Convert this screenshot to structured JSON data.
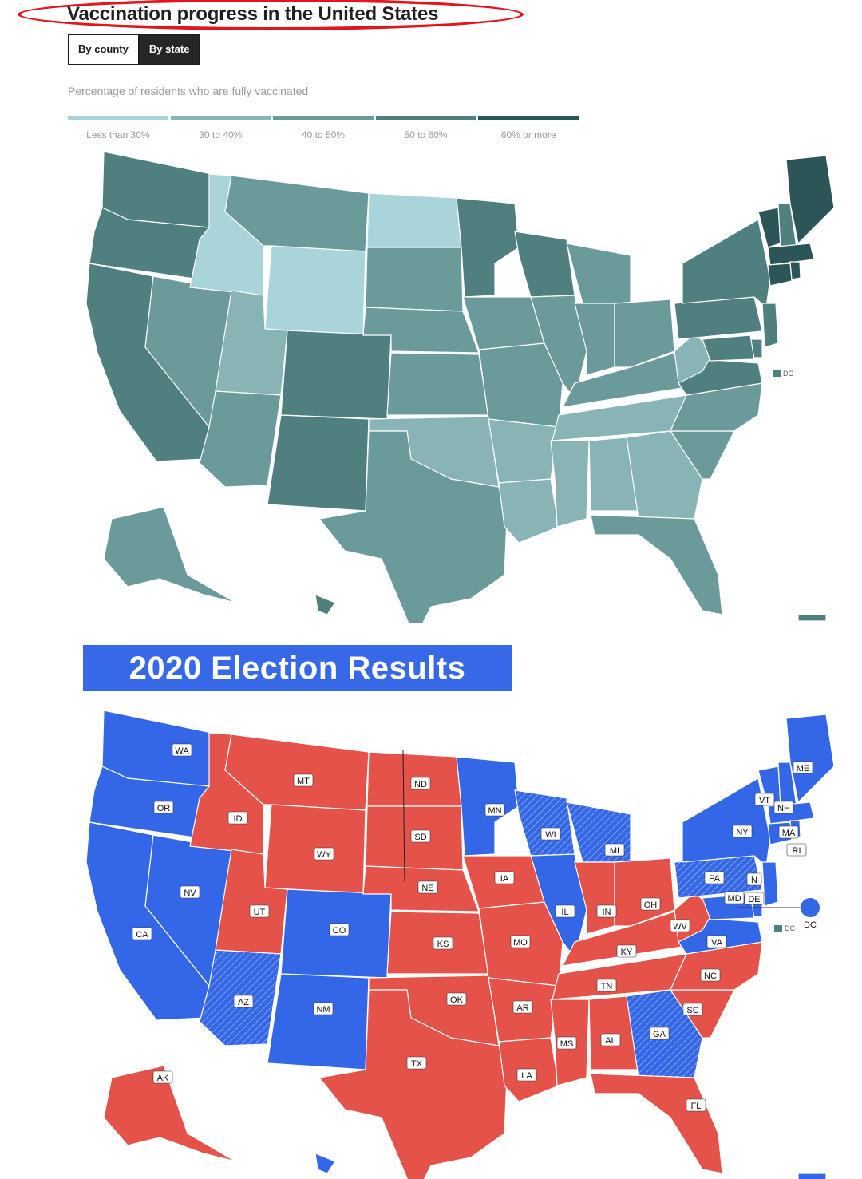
{
  "vaccination": {
    "title": "Vaccination progress in the United States",
    "toggle": {
      "county_label": "By county",
      "state_label": "By state",
      "selected": "By state"
    },
    "subtitle": "Percentage of residents who are fully vaccinated",
    "legend": [
      {
        "label": "Less than 30%",
        "color": "#a9d5da"
      },
      {
        "label": "30 to 40%",
        "color": "#88b4b6"
      },
      {
        "label": "40 to 50%",
        "color": "#6b9a9b"
      },
      {
        "label": "50 to 60%",
        "color": "#4f7f7f"
      },
      {
        "label": "60% or more",
        "color": "#2b5556"
      }
    ],
    "dc_label": "DC",
    "states": {
      "WA": 3,
      "OR": 3,
      "CA": 3,
      "ID": 0,
      "NV": 2,
      "UT": 1,
      "AZ": 2,
      "MT": 2,
      "WY": 0,
      "CO": 3,
      "NM": 3,
      "ND": 0,
      "SD": 2,
      "NE": 2,
      "KS": 2,
      "OK": 1,
      "TX": 2,
      "MN": 3,
      "IA": 2,
      "MO": 2,
      "AR": 1,
      "LA": 1,
      "WI": 3,
      "IL": 2,
      "MI": 2,
      "IN": 2,
      "OH": 2,
      "KY": 2,
      "TN": 1,
      "MS": 1,
      "AL": 1,
      "GA": 1,
      "FL": 2,
      "SC": 2,
      "NC": 2,
      "VA": 3,
      "WV": 1,
      "PA": 3,
      "NY": 3,
      "ME": 4,
      "VT": 4,
      "NH": 3,
      "MA": 4,
      "CT": 4,
      "RI": 4,
      "NJ": 3,
      "DE": 3,
      "MD": 3,
      "AK": 2,
      "HI": 3,
      "PR": 3,
      "DC": 3
    }
  },
  "election": {
    "title": "2020 Election Results",
    "dc_label": "DC",
    "dc_point_label": "DC",
    "colors": {
      "dem": "#3367e8",
      "rep": "#e4524a"
    },
    "states": {
      "WA": "D",
      "OR": "D",
      "CA": "D",
      "NV": "D",
      "CO": "D",
      "NM": "D",
      "AZ": "D*",
      "ID": "R",
      "MT": "R",
      "WY": "R",
      "UT": "R",
      "ND": "R",
      "SD": "R",
      "NE": "R",
      "KS": "R",
      "OK": "R",
      "TX": "R",
      "IA": "R",
      "MO": "R",
      "AR": "R",
      "LA": "R",
      "MS": "R",
      "AL": "R",
      "TN": "R",
      "KY": "R",
      "IN": "R",
      "OH": "R",
      "WV": "R",
      "SC": "R",
      "NC": "R",
      "FL": "R",
      "AK": "R",
      "MN": "D",
      "WI": "D*",
      "MI": "D*",
      "IL": "D",
      "GA": "D*",
      "PA": "D*",
      "VA": "D",
      "MD": "D",
      "DE": "D",
      "NJ": "D",
      "NY": "D",
      "CT": "D",
      "RI": "D",
      "MA": "D",
      "VT": "D",
      "NH": "D",
      "ME": "D",
      "HI": "D"
    },
    "labels": [
      "WA",
      "OR",
      "CA",
      "NV",
      "ID",
      "MT",
      "WY",
      "UT",
      "AZ",
      "CO",
      "NM",
      "ND",
      "SD",
      "NE",
      "KS",
      "OK",
      "TX",
      "MN",
      "IA",
      "MO",
      "AR",
      "LA",
      "WI",
      "IL",
      "MI",
      "IN",
      "OH",
      "KY",
      "TN",
      "MS",
      "AL",
      "GA",
      "FL",
      "SC",
      "NC",
      "VA",
      "WV",
      "PA",
      "NY",
      "VT",
      "NH",
      "MA",
      "RI",
      "N",
      "MD",
      "DE",
      "ME",
      "AK"
    ]
  }
}
